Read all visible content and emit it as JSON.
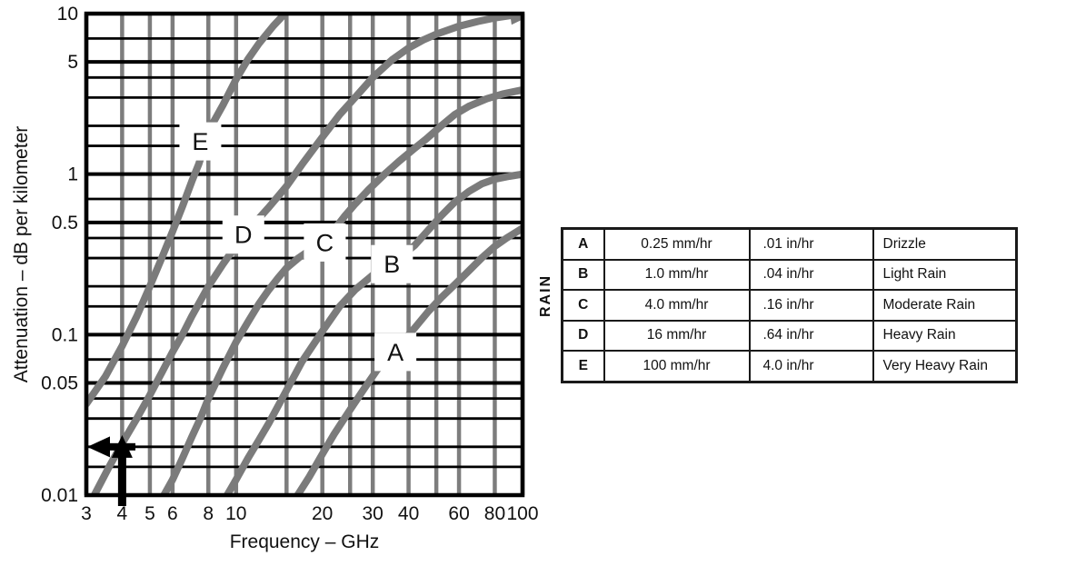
{
  "figure": {
    "y_axis_title": "Attenuation – dB per kilometer",
    "x_axis_title": "Frequency – GHz"
  },
  "colors": {
    "curve_gray": "#7b7b7b",
    "grid_vertical_gray": "#7d7d7d",
    "grid_horizontal_black": "#000000",
    "axis_black": "#000000",
    "annotation_arrow_black": "#000000",
    "background": "#ffffff",
    "text": "#111111"
  },
  "chart_data": {
    "type": "line",
    "x_scale": "log",
    "y_scale": "log",
    "xlim": [
      3,
      100
    ],
    "ylim": [
      0.01,
      10
    ],
    "title": "",
    "xlabel": "Frequency – GHz",
    "ylabel": "Attenuation – dB per kilometer",
    "x_tick_values": [
      3,
      4,
      5,
      6,
      8,
      10,
      20,
      30,
      40,
      60,
      80,
      100
    ],
    "x_tick_labels": [
      "3",
      "4",
      "5",
      "6",
      "8",
      "10",
      "20",
      "30",
      "40",
      "60",
      "80",
      "100"
    ],
    "y_tick_values": [
      10,
      5,
      1,
      0.5,
      0.1,
      0.05,
      0.01
    ],
    "y_tick_labels": [
      "10",
      "5",
      "1",
      "0.5",
      "0.1",
      "0.05",
      "0.01"
    ],
    "x_gridlines": [
      3,
      4,
      5,
      6,
      8,
      10,
      15,
      20,
      25,
      30,
      40,
      50,
      60,
      80,
      100
    ],
    "y_gridlines": [
      0.01,
      0.015,
      0.02,
      0.03,
      0.04,
      0.05,
      0.07,
      0.1,
      0.15,
      0.2,
      0.3,
      0.4,
      0.5,
      0.7,
      1,
      1.5,
      2,
      3,
      4,
      5,
      7,
      10
    ],
    "y_gridlines_major": [
      0.01,
      0.05,
      0.1,
      0.5,
      1,
      5,
      10
    ],
    "grid": true,
    "legend_position": "separate-table-right",
    "series": [
      {
        "name": "E",
        "rain_rate": "100 mm/hr",
        "label_at": [
          7.5,
          1.6
        ],
        "end_arrowhead": false,
        "points": [
          [
            3,
            0.037
          ],
          [
            3.5,
            0.055
          ],
          [
            4,
            0.085
          ],
          [
            4.5,
            0.13
          ],
          [
            5,
            0.2
          ],
          [
            5.5,
            0.3
          ],
          [
            6,
            0.44
          ],
          [
            6.5,
            0.63
          ],
          [
            7,
            0.9
          ],
          [
            7.4,
            1.15
          ],
          [
            8.2,
            2.0
          ],
          [
            9,
            2.7
          ],
          [
            10,
            3.9
          ],
          [
            11,
            5.2
          ],
          [
            12,
            6.5
          ],
          [
            13.5,
            8.4
          ],
          [
            14.8,
            10
          ]
        ]
      },
      {
        "name": "D",
        "rain_rate": "16 mm/hr",
        "label_at": [
          10.6,
          0.42
        ],
        "end_arrowhead": true,
        "points": [
          [
            3.2,
            0.01
          ],
          [
            3.6,
            0.015
          ],
          [
            4,
            0.021
          ],
          [
            4.5,
            0.03
          ],
          [
            5,
            0.042
          ],
          [
            5.5,
            0.058
          ],
          [
            6,
            0.078
          ],
          [
            6.5,
            0.1
          ],
          [
            7,
            0.13
          ],
          [
            8,
            0.2
          ],
          [
            9,
            0.275
          ],
          [
            10,
            0.36
          ],
          [
            11,
            0.45
          ],
          [
            12,
            0.53
          ],
          [
            13,
            0.62
          ],
          [
            15,
            0.84
          ],
          [
            17,
            1.15
          ],
          [
            20,
            1.7
          ],
          [
            23,
            2.35
          ],
          [
            26,
            3.0
          ],
          [
            30,
            4.0
          ],
          [
            35,
            5.15
          ],
          [
            40,
            6.1
          ],
          [
            45,
            6.85
          ],
          [
            50,
            7.45
          ],
          [
            60,
            8.35
          ],
          [
            70,
            8.95
          ],
          [
            80,
            9.4
          ],
          [
            90,
            9.7
          ],
          [
            100,
            9.95
          ]
        ]
      },
      {
        "name": "C",
        "rain_rate": "4.0 mm/hr",
        "label_at": [
          20.4,
          0.375
        ],
        "end_arrowhead": false,
        "points": [
          [
            5.6,
            0.01
          ],
          [
            6,
            0.0125
          ],
          [
            6.5,
            0.017
          ],
          [
            7,
            0.023
          ],
          [
            7.5,
            0.03
          ],
          [
            8,
            0.04
          ],
          [
            9,
            0.062
          ],
          [
            10,
            0.09
          ],
          [
            11,
            0.12
          ],
          [
            12,
            0.155
          ],
          [
            13,
            0.19
          ],
          [
            14,
            0.225
          ],
          [
            15,
            0.26
          ],
          [
            16.5,
            0.3
          ],
          [
            18.5,
            0.345
          ],
          [
            20.5,
            0.39
          ],
          [
            22,
            0.45
          ],
          [
            24,
            0.55
          ],
          [
            26,
            0.65
          ],
          [
            29,
            0.8
          ],
          [
            33,
            1.0
          ],
          [
            37,
            1.2
          ],
          [
            42,
            1.45
          ],
          [
            46,
            1.65
          ],
          [
            52,
            2.0
          ],
          [
            58,
            2.35
          ],
          [
            65,
            2.65
          ],
          [
            75,
            2.95
          ],
          [
            85,
            3.15
          ],
          [
            100,
            3.35
          ]
        ]
      },
      {
        "name": "B",
        "rain_rate": "1.0 mm/hr",
        "label_at": [
          35,
          0.275
        ],
        "end_arrowhead": false,
        "points": [
          [
            9.3,
            0.01
          ],
          [
            10,
            0.0125
          ],
          [
            11,
            0.017
          ],
          [
            12,
            0.022
          ],
          [
            13,
            0.028
          ],
          [
            15,
            0.045
          ],
          [
            17,
            0.068
          ],
          [
            20,
            0.105
          ],
          [
            23,
            0.15
          ],
          [
            26,
            0.19
          ],
          [
            30,
            0.235
          ],
          [
            33,
            0.26
          ],
          [
            37,
            0.3
          ],
          [
            42,
            0.36
          ],
          [
            47,
            0.45
          ],
          [
            52,
            0.55
          ],
          [
            58,
            0.67
          ],
          [
            65,
            0.78
          ],
          [
            72,
            0.87
          ],
          [
            80,
            0.93
          ],
          [
            90,
            0.97
          ],
          [
            100,
            1.0
          ]
        ]
      },
      {
        "name": "A",
        "rain_rate": "0.25 mm/hr",
        "label_at": [
          36,
          0.078
        ],
        "end_arrowhead": false,
        "points": [
          [
            16.4,
            0.01
          ],
          [
            18,
            0.013
          ],
          [
            20,
            0.018
          ],
          [
            22,
            0.024
          ],
          [
            25,
            0.034
          ],
          [
            28,
            0.046
          ],
          [
            31,
            0.06
          ],
          [
            34,
            0.072
          ],
          [
            38,
            0.09
          ],
          [
            42,
            0.11
          ],
          [
            47,
            0.14
          ],
          [
            52,
            0.17
          ],
          [
            58,
            0.205
          ],
          [
            65,
            0.25
          ],
          [
            72,
            0.3
          ],
          [
            80,
            0.355
          ],
          [
            88,
            0.4
          ],
          [
            100,
            0.46
          ]
        ]
      }
    ],
    "annotation": {
      "description": "black arrows marking example reading on curve D",
      "marked_frequency_ghz": 4,
      "marked_attenuation_db_per_km": 0.02,
      "marked_curve": "D"
    }
  },
  "table": {
    "side_label": "RAIN",
    "rows": [
      {
        "letter": "A",
        "rate_mm": "0.25 mm/hr",
        "rate_in": ".01 in/hr",
        "description": "Drizzle"
      },
      {
        "letter": "B",
        "rate_mm": "1.0 mm/hr",
        "rate_in": ".04 in/hr",
        "description": "Light Rain"
      },
      {
        "letter": "C",
        "rate_mm": "4.0 mm/hr",
        "rate_in": ".16 in/hr",
        "description": "Moderate Rain"
      },
      {
        "letter": "D",
        "rate_mm": "16 mm/hr",
        "rate_in": ".64 in/hr",
        "description": "Heavy Rain"
      },
      {
        "letter": "E",
        "rate_mm": "100 mm/hr",
        "rate_in": "4.0 in/hr",
        "description": "Very Heavy Rain"
      }
    ]
  }
}
